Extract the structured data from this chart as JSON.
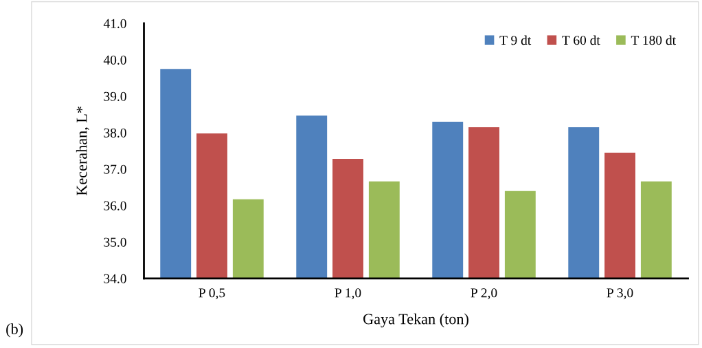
{
  "chart_data": {
    "type": "bar",
    "xlabel": "Gaya Tekan (ton)",
    "ylabel": "Kecerahan, L*",
    "categories": [
      "P 0,5",
      "P 1,0",
      "P 2,0",
      "P 3,0"
    ],
    "series": [
      {
        "name": "T 9 dt",
        "color": "#4f81bd",
        "values": [
          39.75,
          38.47,
          38.3,
          38.15
        ]
      },
      {
        "name": "T 60 dt",
        "color": "#c0504d",
        "values": [
          37.98,
          37.28,
          38.15,
          37.45
        ]
      },
      {
        "name": "T 180 dt",
        "color": "#9bbb59",
        "values": [
          36.17,
          36.66,
          36.4,
          36.66
        ]
      }
    ],
    "ylim": [
      34,
      41
    ],
    "yticks": [
      {
        "value": 34,
        "label": "34.0"
      },
      {
        "value": 35,
        "label": "35.0"
      },
      {
        "value": 36,
        "label": "36.0"
      },
      {
        "value": 37,
        "label": "37.0"
      },
      {
        "value": 38,
        "label": "38.0"
      },
      {
        "value": 39,
        "label": "39.0"
      },
      {
        "value": 40,
        "label": "40.0"
      },
      {
        "value": 41,
        "label": "41.0"
      }
    ],
    "grid": false,
    "legend": "top right",
    "annotations": [
      "(b)"
    ]
  }
}
